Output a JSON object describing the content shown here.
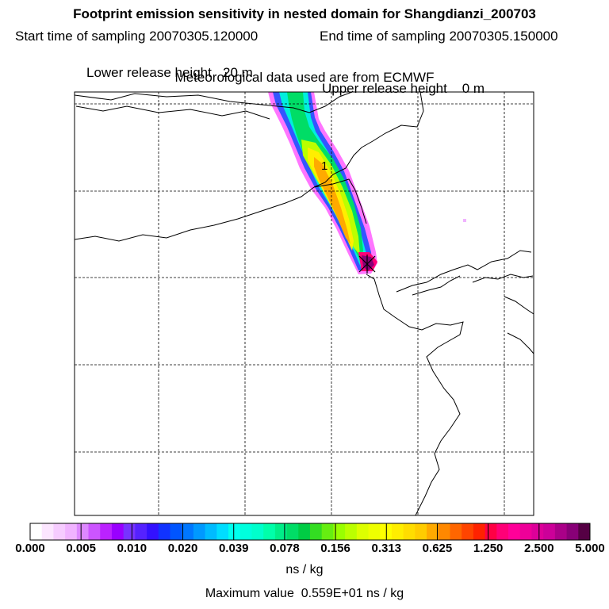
{
  "header": {
    "title": "Footprint emission sensitivity in nested domain for Shangdianzi_200703",
    "start_label": "Start time of sampling 20070305.120000",
    "end_label": "End time of sampling 20070305.150000",
    "lower_release": "Lower release height   20 m",
    "upper_release": "Upper release height    0 m",
    "met_data": "Meteorological data used are from ECMWF"
  },
  "map": {
    "release_marker_label": "1",
    "gridlines": "dashed"
  },
  "colorbar": {
    "ticks": [
      "0.000",
      "0.005",
      "0.010",
      "0.020",
      "0.039",
      "0.078",
      "0.156",
      "0.313",
      "0.625",
      "1.250",
      "2.500",
      "5.000"
    ],
    "colors": [
      "#ffffff",
      "#fce6ff",
      "#f6ccff",
      "#f0b3ff",
      "#dd88ff",
      "#cc55ff",
      "#bb22ff",
      "#9900ff",
      "#7733ff",
      "#5522ff",
      "#3311ff",
      "#1133ff",
      "#0055ff",
      "#0077ff",
      "#0099ff",
      "#00bbff",
      "#00ddff",
      "#00ffee",
      "#00ffdd",
      "#00ffcc",
      "#00ffaa",
      "#00ee88",
      "#00dd66",
      "#00cc44",
      "#33dd22",
      "#66ee11",
      "#99ff00",
      "#bbff00",
      "#ddff00",
      "#eeff00",
      "#ffff00",
      "#ffee00",
      "#ffdd00",
      "#ffcc00",
      "#ffaa00",
      "#ff8800",
      "#ff6600",
      "#ff4400",
      "#ff2200",
      "#ff0044",
      "#ff0077",
      "#ff0099",
      "#ee0099",
      "#dd0099",
      "#cc0099",
      "#aa0088",
      "#880077",
      "#550044"
    ],
    "unit": "ns / kg",
    "max_value_label": "Maximum value  0.559E+01 ns / kg"
  }
}
